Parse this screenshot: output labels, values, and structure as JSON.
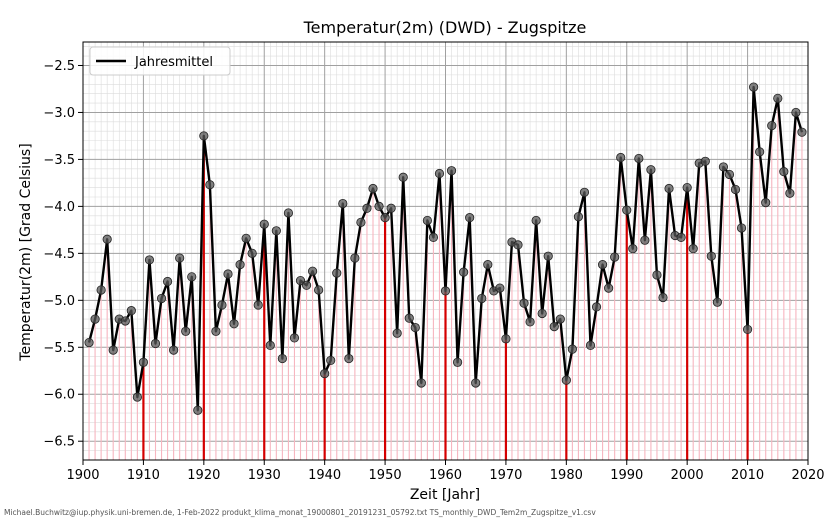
{
  "chart_data": {
    "type": "line",
    "title": "Temperatur(2m) (DWD) - Zugspitze",
    "xlabel": "Zeit [Jahr]",
    "ylabel": "Temperatur(2m) [Grad Celsius]",
    "xlim": [
      1900,
      2020
    ],
    "ylim": [
      -6.7,
      -2.25
    ],
    "xticks": [
      1900,
      1910,
      1920,
      1930,
      1940,
      1950,
      1960,
      1970,
      1980,
      1990,
      2000,
      2010,
      2020
    ],
    "yticks": [
      -6.5,
      -6.0,
      -5.5,
      -5.0,
      -4.5,
      -4.0,
      -3.5,
      -3.0,
      -2.5
    ],
    "grid": true,
    "legend": "top-left",
    "series": [
      {
        "name": "Jahresmittel",
        "color": "#000000",
        "x": [
          1901,
          1902,
          1903,
          1904,
          1905,
          1906,
          1907,
          1908,
          1909,
          1910,
          1911,
          1912,
          1913,
          1914,
          1915,
          1916,
          1917,
          1918,
          1919,
          1920,
          1921,
          1922,
          1923,
          1924,
          1925,
          1926,
          1927,
          1928,
          1929,
          1930,
          1931,
          1932,
          1933,
          1934,
          1935,
          1936,
          1937,
          1938,
          1939,
          1940,
          1941,
          1942,
          1943,
          1944,
          1945,
          1946,
          1947,
          1948,
          1949,
          1950,
          1951,
          1952,
          1953,
          1954,
          1955,
          1956,
          1957,
          1958,
          1959,
          1960,
          1961,
          1962,
          1963,
          1964,
          1965,
          1966,
          1967,
          1968,
          1969,
          1970,
          1971,
          1972,
          1973,
          1974,
          1975,
          1976,
          1977,
          1978,
          1979,
          1980,
          1981,
          1982,
          1983,
          1984,
          1985,
          1986,
          1987,
          1988,
          1989,
          1990,
          1991,
          1992,
          1993,
          1994,
          1995,
          1996,
          1997,
          1998,
          1999,
          2000,
          2001,
          2002,
          2003,
          2004,
          2005,
          2006,
          2007,
          2008,
          2009,
          2010,
          2011,
          2012,
          2013,
          2014,
          2015,
          2016,
          2017,
          2018,
          2019
        ],
        "values": [
          -5.45,
          -5.2,
          -4.89,
          -4.35,
          -5.53,
          -5.2,
          -5.22,
          -5.11,
          -6.03,
          -5.66,
          -4.57,
          -5.46,
          -4.98,
          -4.8,
          -5.53,
          -4.55,
          -5.33,
          -4.75,
          -6.17,
          -3.25,
          -3.77,
          -5.33,
          -5.05,
          -4.72,
          -5.25,
          -4.62,
          -4.34,
          -4.5,
          -5.05,
          -4.19,
          -5.48,
          -4.26,
          -5.62,
          -4.07,
          -5.4,
          -4.79,
          -4.84,
          -4.69,
          -4.89,
          -5.78,
          -5.64,
          -4.71,
          -3.97,
          -5.62,
          -4.55,
          -4.17,
          -4.02,
          -3.81,
          -4.0,
          -4.12,
          -4.02,
          -5.35,
          -3.69,
          -5.19,
          -5.29,
          -5.88,
          -4.15,
          -4.33,
          -3.65,
          -4.9,
          -3.62,
          -5.66,
          -4.7,
          -4.12,
          -5.88,
          -4.98,
          -4.62,
          -4.9,
          -4.87,
          -5.41,
          -4.38,
          -4.41,
          -5.03,
          -5.23,
          -4.15,
          -5.14,
          -4.53,
          -5.28,
          -5.2,
          -5.85,
          -5.52,
          -4.11,
          -3.85,
          -5.48,
          -5.07,
          -4.62,
          -4.87,
          -4.54,
          -3.48,
          -4.04,
          -4.45,
          -3.49,
          -4.36,
          -3.61,
          -4.73,
          -4.97,
          -3.81,
          -4.31,
          -4.33,
          -3.8,
          -4.45,
          -3.54,
          -3.52,
          -4.53,
          -5.02,
          -3.58,
          -3.66,
          -3.82,
          -4.23,
          -5.31,
          -2.73,
          -3.42,
          -3.96,
          -3.14,
          -2.85,
          -3.63,
          -3.86,
          -3.0,
          -3.21
        ]
      }
    ]
  },
  "legend_label": "Jahresmittel",
  "footer": "Michael.Buchwitz@iup.physik.uni-bremen.de, 1-Feb-2022 produkt_klima_monat_19000801_20191231_05792.txt TS_monthly_DWD_Tem2m_Zugspitze_v1.csv",
  "colors": {
    "line": "#000000",
    "marker": "#555555",
    "stem_minor": "#f7b6c0",
    "stem_major": "#d40000",
    "grid": "#a0a0a0",
    "grid_minor": "#dcdcdc"
  }
}
